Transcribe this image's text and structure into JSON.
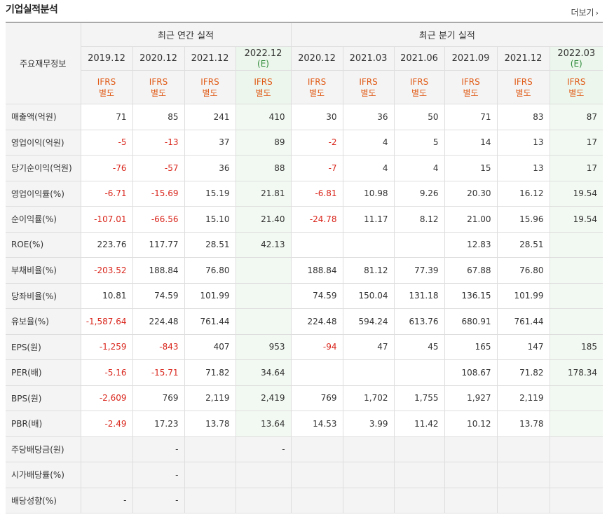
{
  "section_title": "기업실적분석",
  "more_label": "더보기",
  "more_chevron": "›",
  "row_header_label": "주요재무정보",
  "group_annual": "최근 연간 실적",
  "group_quarterly": "최근 분기 실적",
  "est_label": "(E)",
  "periods": [
    {
      "date": "2019.12",
      "est": false
    },
    {
      "date": "2020.12",
      "est": false
    },
    {
      "date": "2021.12",
      "est": false
    },
    {
      "date": "2022.12",
      "est": true
    },
    {
      "date": "2020.12",
      "est": false
    },
    {
      "date": "2021.03",
      "est": false
    },
    {
      "date": "2021.06",
      "est": false
    },
    {
      "date": "2021.09",
      "est": false
    },
    {
      "date": "2021.12",
      "est": false
    },
    {
      "date": "2022.03",
      "est": true
    }
  ],
  "ifrs_line1": "IFRS",
  "ifrs_line2": "별도",
  "rows": [
    {
      "label": "매출액(억원)",
      "values": [
        "71",
        "85",
        "241",
        "410",
        "30",
        "36",
        "50",
        "71",
        "83",
        "87"
      ]
    },
    {
      "label": "영업이익(억원)",
      "values": [
        "-5",
        "-13",
        "37",
        "89",
        "-2",
        "4",
        "5",
        "14",
        "13",
        "17"
      ]
    },
    {
      "label": "당기순이익(억원)",
      "values": [
        "-76",
        "-57",
        "36",
        "88",
        "-7",
        "4",
        "4",
        "15",
        "13",
        "17"
      ]
    },
    {
      "label": "영업이익률(%)",
      "values": [
        "-6.71",
        "-15.69",
        "15.19",
        "21.81",
        "-6.81",
        "10.98",
        "9.26",
        "20.30",
        "16.12",
        "19.54"
      ]
    },
    {
      "label": "순이익률(%)",
      "values": [
        "-107.01",
        "-66.56",
        "15.10",
        "21.40",
        "-24.78",
        "11.17",
        "8.12",
        "21.00",
        "15.96",
        "19.54"
      ]
    },
    {
      "label": "ROE(%)",
      "values": [
        "223.76",
        "117.77",
        "28.51",
        "42.13",
        "",
        "",
        "",
        "12.83",
        "28.51",
        ""
      ]
    },
    {
      "label": "부채비율(%)",
      "values": [
        "-203.52",
        "188.84",
        "76.80",
        "",
        "188.84",
        "81.12",
        "77.39",
        "67.88",
        "76.80",
        ""
      ]
    },
    {
      "label": "당좌비율(%)",
      "values": [
        "10.81",
        "74.59",
        "101.99",
        "",
        "74.59",
        "150.04",
        "131.18",
        "136.15",
        "101.99",
        ""
      ]
    },
    {
      "label": "유보율(%)",
      "values": [
        "-1,587.64",
        "224.48",
        "761.44",
        "",
        "224.48",
        "594.24",
        "613.76",
        "680.91",
        "761.44",
        ""
      ]
    },
    {
      "label": "EPS(원)",
      "values": [
        "-1,259",
        "-843",
        "407",
        "953",
        "-94",
        "47",
        "45",
        "165",
        "147",
        "185"
      ]
    },
    {
      "label": "PER(배)",
      "values": [
        "-5.16",
        "-15.71",
        "71.82",
        "34.64",
        "",
        "",
        "",
        "108.67",
        "71.82",
        "178.34"
      ]
    },
    {
      "label": "BPS(원)",
      "values": [
        "-2,609",
        "769",
        "2,119",
        "2,419",
        "769",
        "1,702",
        "1,755",
        "1,927",
        "2,119",
        ""
      ]
    },
    {
      "label": "PBR(배)",
      "values": [
        "-2.49",
        "17.23",
        "13.78",
        "13.64",
        "14.53",
        "3.99",
        "11.42",
        "10.12",
        "13.78",
        ""
      ]
    },
    {
      "label": "주당배당금(원)",
      "values": [
        "",
        "-",
        "",
        "-",
        "",
        "",
        "",
        "",
        "",
        ""
      ],
      "gray": true
    },
    {
      "label": "시가배당률(%)",
      "values": [
        "",
        "-",
        "",
        "",
        "",
        "",
        "",
        "",
        "",
        ""
      ],
      "gray": true
    },
    {
      "label": "배당성향(%)",
      "values": [
        "-",
        "-",
        "",
        "",
        "",
        "",
        "",
        "",
        "",
        ""
      ],
      "gray": true
    }
  ],
  "colors": {
    "negative": "#d9261c",
    "ifrs": "#e05a16",
    "estimate": "#2e8b3a",
    "estimate_bg": "#ecf6ec"
  }
}
